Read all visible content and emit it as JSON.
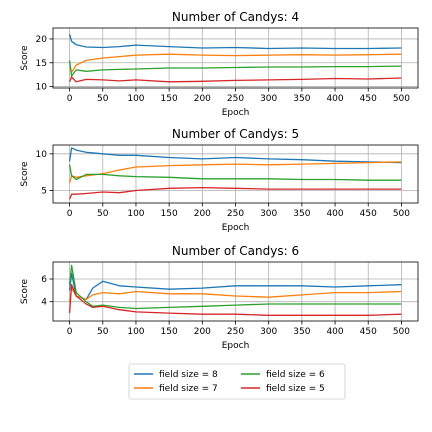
{
  "colors": {
    "series": [
      "#1f77b4",
      "#ff7f0e",
      "#2ca02c",
      "#d62728"
    ],
    "grid": "#b0b0b0",
    "axis": "#000000"
  },
  "chart_data": [
    {
      "type": "line",
      "title": "Number of Candys: 4",
      "xlabel": "Epoch",
      "ylabel": "Score",
      "xlim": [
        -25,
        525
      ],
      "ylim": [
        9.7,
        22.3
      ],
      "xticks": [
        0,
        50,
        100,
        150,
        200,
        250,
        300,
        350,
        400,
        450,
        500
      ],
      "yticks": [
        10,
        15,
        20
      ],
      "grid": true,
      "series": [
        {
          "name": "field size = 8",
          "x": [
            0,
            3,
            10,
            25,
            50,
            75,
            100,
            150,
            200,
            250,
            300,
            350,
            400,
            450,
            500
          ],
          "values": [
            21,
            19.5,
            18.8,
            18.3,
            18.2,
            18.4,
            18.7,
            18.4,
            18.1,
            18.2,
            18.0,
            18.1,
            18.0,
            18.0,
            18.1
          ]
        },
        {
          "name": "field size = 7",
          "x": [
            0,
            3,
            10,
            25,
            50,
            75,
            100,
            150,
            200,
            250,
            300,
            350,
            400,
            450,
            500
          ],
          "values": [
            14,
            13,
            14.5,
            15.5,
            16.0,
            16.3,
            16.6,
            16.8,
            16.6,
            16.5,
            16.6,
            16.7,
            16.6,
            16.7,
            16.8
          ]
        },
        {
          "name": "field size = 6",
          "x": [
            0,
            3,
            10,
            25,
            50,
            75,
            100,
            150,
            200,
            250,
            300,
            350,
            400,
            450,
            500
          ],
          "values": [
            15.5,
            12.2,
            13.5,
            13.2,
            13.5,
            13.6,
            13.7,
            13.9,
            13.9,
            14.0,
            14.1,
            14.1,
            14.2,
            14.2,
            14.3
          ]
        },
        {
          "name": "field size = 5",
          "x": [
            0,
            3,
            10,
            25,
            50,
            75,
            100,
            150,
            200,
            250,
            300,
            350,
            400,
            450,
            500
          ],
          "values": [
            11.0,
            12.0,
            11.0,
            11.5,
            11.4,
            11.2,
            11.4,
            11.0,
            11.1,
            11.3,
            11.4,
            11.5,
            11.7,
            11.6,
            11.8
          ]
        }
      ]
    },
    {
      "type": "line",
      "title": "Number of Candys: 5",
      "xlabel": "Epoch",
      "ylabel": "Score",
      "xlim": [
        -25,
        525
      ],
      "ylim": [
        3.3,
        11.2
      ],
      "xticks": [
        0,
        50,
        100,
        150,
        200,
        250,
        300,
        350,
        400,
        450,
        500
      ],
      "yticks": [
        5,
        10
      ],
      "grid": true,
      "series": [
        {
          "name": "field size = 8",
          "x": [
            0,
            3,
            10,
            25,
            50,
            75,
            100,
            150,
            200,
            250,
            300,
            350,
            400,
            450,
            500
          ],
          "values": [
            9.0,
            10.8,
            10.5,
            10.2,
            10.0,
            9.8,
            9.8,
            9.5,
            9.3,
            9.5,
            9.3,
            9.2,
            9.0,
            8.9,
            8.8
          ]
        },
        {
          "name": "field size = 7",
          "x": [
            0,
            3,
            10,
            25,
            50,
            75,
            100,
            150,
            200,
            250,
            300,
            350,
            400,
            450,
            500
          ],
          "values": [
            6.0,
            7.0,
            6.8,
            7.0,
            7.3,
            7.8,
            8.2,
            8.4,
            8.5,
            8.6,
            8.5,
            8.6,
            8.7,
            8.8,
            8.9
          ]
        },
        {
          "name": "field size = 6",
          "x": [
            0,
            3,
            10,
            25,
            50,
            75,
            100,
            150,
            200,
            250,
            300,
            350,
            400,
            450,
            500
          ],
          "values": [
            8.5,
            7.0,
            6.5,
            7.2,
            7.2,
            7.0,
            6.9,
            6.8,
            6.6,
            6.6,
            6.6,
            6.5,
            6.5,
            6.4,
            6.4
          ]
        },
        {
          "name": "field size = 5",
          "x": [
            0,
            3,
            10,
            25,
            50,
            75,
            100,
            150,
            200,
            250,
            300,
            350,
            400,
            450,
            500
          ],
          "values": [
            3.8,
            4.5,
            4.5,
            4.6,
            4.8,
            4.7,
            5.0,
            5.3,
            5.4,
            5.3,
            5.2,
            5.2,
            5.2,
            5.2,
            5.2
          ]
        }
      ]
    },
    {
      "type": "line",
      "title": "Number of Candys: 6",
      "xlabel": "Epoch",
      "ylabel": "Score",
      "xlim": [
        -25,
        525
      ],
      "ylim": [
        2.3,
        7.5
      ],
      "xticks": [
        0,
        50,
        100,
        150,
        200,
        250,
        300,
        350,
        400,
        450,
        500
      ],
      "yticks": [
        4,
        6
      ],
      "grid": true,
      "series": [
        {
          "name": "field size = 8",
          "x": [
            0,
            3,
            10,
            25,
            35,
            50,
            75,
            100,
            150,
            200,
            250,
            300,
            350,
            400,
            450,
            500
          ],
          "values": [
            5.0,
            6.5,
            4.5,
            4.2,
            5.2,
            5.8,
            5.4,
            5.3,
            5.1,
            5.2,
            5.4,
            5.4,
            5.4,
            5.3,
            5.4,
            5.5
          ]
        },
        {
          "name": "field size = 7",
          "x": [
            0,
            3,
            10,
            25,
            35,
            50,
            75,
            100,
            150,
            200,
            250,
            300,
            350,
            400,
            450,
            500
          ],
          "values": [
            4.0,
            5.2,
            4.5,
            4.2,
            4.6,
            4.8,
            4.7,
            4.9,
            4.7,
            4.7,
            4.5,
            4.4,
            4.6,
            4.8,
            4.8,
            4.9
          ]
        },
        {
          "name": "field size = 6",
          "x": [
            0,
            3,
            10,
            25,
            35,
            50,
            75,
            100,
            150,
            200,
            250,
            300,
            350,
            400,
            450,
            500
          ],
          "values": [
            5.5,
            7.2,
            4.8,
            4.0,
            3.6,
            3.7,
            3.5,
            3.4,
            3.5,
            3.6,
            3.7,
            3.8,
            3.8,
            3.8,
            3.8,
            3.8
          ]
        },
        {
          "name": "field size = 5",
          "x": [
            0,
            3,
            10,
            25,
            35,
            50,
            75,
            100,
            150,
            200,
            250,
            300,
            350,
            400,
            450,
            500
          ],
          "values": [
            3.0,
            5.5,
            4.5,
            3.8,
            3.5,
            3.6,
            3.3,
            3.1,
            3.0,
            2.9,
            2.9,
            2.8,
            2.8,
            2.8,
            2.8,
            2.9
          ]
        }
      ]
    }
  ],
  "legend": {
    "entries": [
      "field size = 8",
      "field size = 7",
      "field size = 6",
      "field size = 5"
    ],
    "placement": "bottom-center",
    "columns": 2
  }
}
